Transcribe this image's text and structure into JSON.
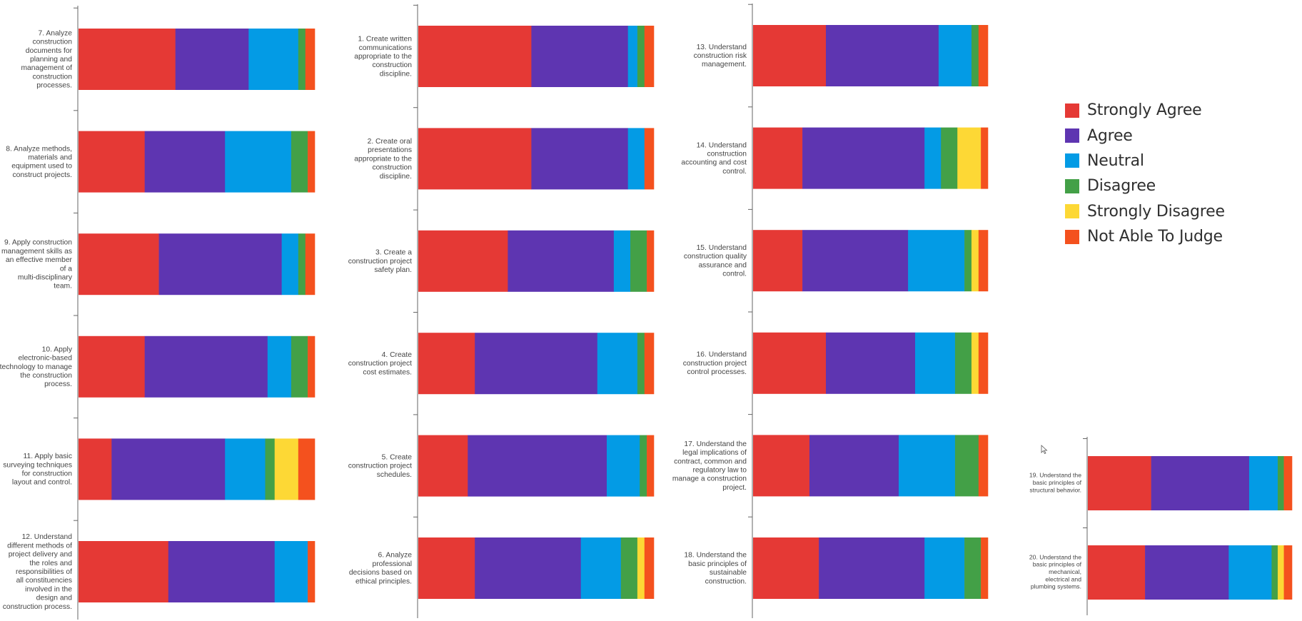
{
  "legend": [
    {
      "label": "Strongly Agree",
      "color": "#e53935"
    },
    {
      "label": "Agree",
      "color": "#5e35b1"
    },
    {
      "label": "Neutral",
      "color": "#039be5"
    },
    {
      "label": "Disagree",
      "color": "#43a047"
    },
    {
      "label": "Strongly Disagree",
      "color": "#fdd835"
    },
    {
      "label": "Not Able To Judge",
      "color": "#f4511e"
    }
  ],
  "chart_data": {
    "type": "bar",
    "orientation": "horizontal",
    "stacked": "percent",
    "legend_position": "right",
    "grid": false,
    "series": [
      {
        "name": "Strongly Agree",
        "color": "#e53935"
      },
      {
        "name": "Agree",
        "color": "#5e35b1"
      },
      {
        "name": "Neutral",
        "color": "#039be5"
      },
      {
        "name": "Disagree",
        "color": "#43a047"
      },
      {
        "name": "Strongly Disagree",
        "color": "#fdd835"
      },
      {
        "name": "Not Able To Judge",
        "color": "#f4511e"
      }
    ],
    "panels": [
      {
        "label_lines": [
          "1. Create written",
          "communications",
          "appropriate to the",
          "construction",
          "discipline."
        ],
        "values": [
          48,
          41,
          4,
          3,
          0,
          4
        ]
      },
      {
        "label_lines": [
          "2. Create oral",
          "presentations",
          "appropriate to the",
          "construction",
          "discipline."
        ],
        "values": [
          48,
          41,
          7,
          0,
          0,
          4
        ]
      },
      {
        "label_lines": [
          "3. Create a",
          "construction project",
          "safety plan."
        ],
        "values": [
          38,
          45,
          7,
          7,
          0,
          3
        ]
      },
      {
        "label_lines": [
          "4. Create",
          "construction project",
          "cost estimates."
        ],
        "values": [
          24,
          52,
          17,
          3,
          0,
          4
        ]
      },
      {
        "label_lines": [
          "5. Create",
          "construction project",
          "schedules."
        ],
        "values": [
          21,
          59,
          14,
          3,
          0,
          3
        ]
      },
      {
        "label_lines": [
          "6. Analyze",
          "professional",
          "decisions based on",
          "ethical principles."
        ],
        "values": [
          24,
          45,
          17,
          7,
          3,
          4
        ]
      },
      {
        "label_lines": [
          "7. Analyze",
          "construction",
          "documents for",
          "planning and",
          "management of",
          "construction",
          "processes."
        ],
        "values": [
          41,
          31,
          21,
          3,
          0,
          4
        ]
      },
      {
        "label_lines": [
          "8. Analyze methods,",
          "materials and",
          "equipment used to",
          "construct projects."
        ],
        "values": [
          28,
          34,
          28,
          7,
          0,
          3
        ]
      },
      {
        "label_lines": [
          "9. Apply construction",
          "management skills as",
          "an effective member",
          "of a",
          "multi-disciplinary",
          "team."
        ],
        "values": [
          34,
          52,
          7,
          3,
          0,
          4
        ]
      },
      {
        "label_lines": [
          "10. Apply",
          "electronic-based",
          "technology to manage",
          "the construction",
          "process."
        ],
        "values": [
          28,
          52,
          10,
          7,
          0,
          3
        ]
      },
      {
        "label_lines": [
          "11. Apply basic",
          "surveying techniques",
          "for construction",
          "layout and control."
        ],
        "values": [
          14,
          48,
          17,
          4,
          10,
          7
        ]
      },
      {
        "label_lines": [
          "12. Understand",
          "different methods of",
          "project delivery and",
          "the roles and",
          "responsibilities of",
          "all constituencies",
          "involved in the",
          "design and",
          "construction process."
        ],
        "values": [
          38,
          45,
          14,
          0,
          0,
          3
        ]
      },
      {
        "label_lines": [
          "13. Understand",
          "construction risk",
          "management."
        ],
        "values": [
          31,
          48,
          14,
          3,
          0,
          4
        ]
      },
      {
        "label_lines": [
          "14. Understand",
          "construction",
          "accounting and cost",
          "control."
        ],
        "values": [
          21,
          52,
          7,
          7,
          10,
          3
        ]
      },
      {
        "label_lines": [
          "15. Understand",
          "construction quality",
          "assurance and",
          "control."
        ],
        "values": [
          21,
          45,
          24,
          3,
          3,
          4
        ]
      },
      {
        "label_lines": [
          "16. Understand",
          "construction project",
          "control processes."
        ],
        "values": [
          31,
          38,
          17,
          7,
          3,
          4
        ]
      },
      {
        "label_lines": [
          "17. Understand the",
          "legal implications of",
          "contract, common and",
          "regulatory law to",
          "manage a construction",
          "project."
        ],
        "values": [
          24,
          38,
          24,
          10,
          0,
          4
        ]
      },
      {
        "label_lines": [
          "18. Understand the",
          "basic principles of",
          "sustainable",
          "construction."
        ],
        "values": [
          28,
          45,
          17,
          7,
          0,
          3
        ]
      },
      {
        "label_lines": [
          "19. Understand the",
          "basic principles of",
          "structural behavior."
        ],
        "values": [
          31,
          48,
          14,
          3,
          0,
          4
        ]
      },
      {
        "label_lines": [
          "20. Understand the",
          "basic principles of",
          "mechanical,",
          "electrical and",
          "plumbing systems."
        ],
        "values": [
          28,
          41,
          21,
          3,
          3,
          4
        ]
      }
    ]
  }
}
